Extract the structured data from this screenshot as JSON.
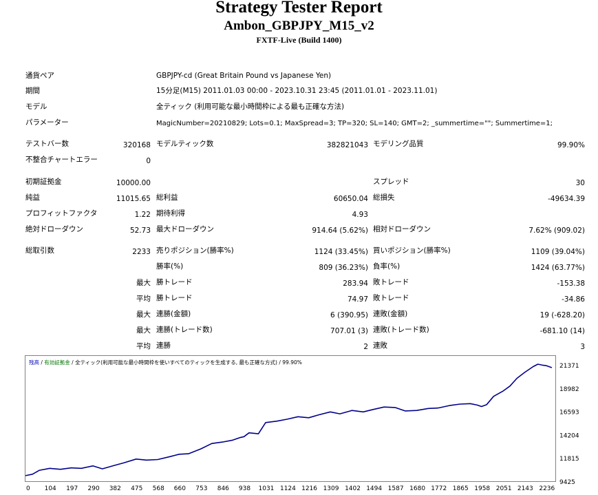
{
  "header": {
    "title": "Strategy Tester Report",
    "ea_name": "Ambon_GBPJPY_M15_v2",
    "server": "FXTF-Live (Build 1400)"
  },
  "info": [
    {
      "label": "通貨ペア",
      "value": "GBPJPY-cd (Great Britain Pound vs Japanese Yen)"
    },
    {
      "label": "期間",
      "value": "15分足(M15) 2011.01.03 00:00 - 2023.10.31 23:45 (2011.01.01 - 2023.11.01)"
    },
    {
      "label": "モデル",
      "value": "全ティック (利用可能な最小時間枠による最も正確な方法)"
    },
    {
      "label": "パラメーター",
      "value": "MagicNumber=20210829; Lots=0.1; MaxSpread=3; TP=320; SL=140; GMT=2; _summertime=\"\"; Summertime=1;"
    }
  ],
  "stats": {
    "test_bars_label": "テストバー数",
    "test_bars": "320168",
    "model_ticks_label": "モデルティック数",
    "model_ticks": "382821043",
    "model_quality_label": "モデリング品質",
    "model_quality": "99.90%",
    "mismatch_label": "不整合チャートエラー",
    "mismatch": "0",
    "deposit_label": "初期証拠金",
    "deposit": "10000.00",
    "spread_label": "スプレッド",
    "spread": "30",
    "net_profit_label": "純益",
    "net_profit": "11015.65",
    "gross_profit_label": "総利益",
    "gross_profit": "60650.04",
    "gross_loss_label": "総損失",
    "gross_loss": "-49634.39",
    "profit_factor_label": "プロフィットファクタ",
    "profit_factor": "1.22",
    "expected_payoff_label": "期待利得",
    "expected_payoff": "4.93",
    "abs_dd_label": "絶対ドローダウン",
    "abs_dd": "52.73",
    "max_dd_label": "最大ドローダウン",
    "max_dd": "914.64 (5.62%)",
    "rel_dd_label": "相対ドローダウン",
    "rel_dd": "7.62% (909.02)",
    "total_trades_label": "総取引数",
    "total_trades": "2233",
    "short_label": "売りポジション(勝率%)",
    "short": "1124 (33.45%)",
    "long_label": "買いポジション(勝率%)",
    "long": "1109 (39.04%)",
    "win_rate_label": "勝率(%)",
    "win_rate": "809 (36.23%)",
    "loss_rate_label": "負率(%)",
    "loss_rate": "1424 (63.77%)",
    "max_word": "最大",
    "avg_word": "平均",
    "win_trade_label": "勝トレード",
    "loss_trade_label": "敗トレード",
    "max_win": "283.94",
    "max_loss": "-153.38",
    "avg_win": "74.97",
    "avg_loss": "-34.86",
    "consec_win_money_label": "連勝(金額)",
    "consec_win_money": "6 (390.95)",
    "consec_loss_money_label": "連敗(金額)",
    "consec_loss_money": "19 (-628.20)",
    "consec_win_trades_label": "連勝(トレード数)",
    "consec_win_trades": "707.01 (3)",
    "consec_loss_trades_label": "連敗(トレード数)",
    "consec_loss_trades": "-681.10 (14)",
    "consec_win_label": "連勝",
    "consec_win": "2",
    "consec_loss_label": "連敗",
    "consec_loss": "3"
  },
  "chart_data": {
    "type": "line",
    "caption_balance": "残高",
    "caption_sep1": " / ",
    "caption_equity": "有効証拠金",
    "caption_sep2": " / ",
    "caption_rest": "全ティック(利用可能な最小時間枠を使いすべてのティックを生成する, 最も正確な方式) / 99.90%",
    "x_ticks": [
      "0",
      "104",
      "197",
      "290",
      "382",
      "475",
      "568",
      "660",
      "753",
      "846",
      "938",
      "1031",
      "1124",
      "1216",
      "1309",
      "1402",
      "1494",
      "1587",
      "1680",
      "1772",
      "1865",
      "1958",
      "2051",
      "2143",
      "2236"
    ],
    "y_ticks": [
      "21371",
      "18982",
      "16593",
      "14204",
      "11815",
      "9425"
    ],
    "xlim": [
      0,
      2275
    ],
    "ylim": [
      9425,
      22300
    ],
    "series_color": "#00008b",
    "x": [
      0,
      30,
      60,
      104,
      150,
      197,
      240,
      290,
      330,
      382,
      420,
      475,
      520,
      568,
      620,
      660,
      700,
      753,
      800,
      846,
      890,
      920,
      938,
      960,
      1000,
      1031,
      1080,
      1124,
      1170,
      1216,
      1260,
      1309,
      1350,
      1402,
      1450,
      1494,
      1540,
      1587,
      1630,
      1680,
      1730,
      1772,
      1820,
      1865,
      1910,
      1940,
      1958,
      1980,
      2010,
      2051,
      2080,
      2110,
      2143,
      2180,
      2200,
      2220,
      2236,
      2260
    ],
    "y": [
      10000,
      10150,
      10550,
      10750,
      10650,
      10800,
      10750,
      11000,
      10700,
      11050,
      11300,
      11700,
      11600,
      11650,
      11950,
      12200,
      12250,
      12750,
      13300,
      13450,
      13650,
      13900,
      14000,
      14400,
      14300,
      15450,
      15600,
      15800,
      16050,
      15950,
      16250,
      16550,
      16350,
      16700,
      16550,
      16800,
      17050,
      17000,
      16650,
      16700,
      16900,
      16950,
      17200,
      17350,
      17400,
      17250,
      17100,
      17300,
      18150,
      18700,
      19200,
      20000,
      20600,
      21200,
      21450,
      21350,
      21300,
      21100
    ]
  }
}
